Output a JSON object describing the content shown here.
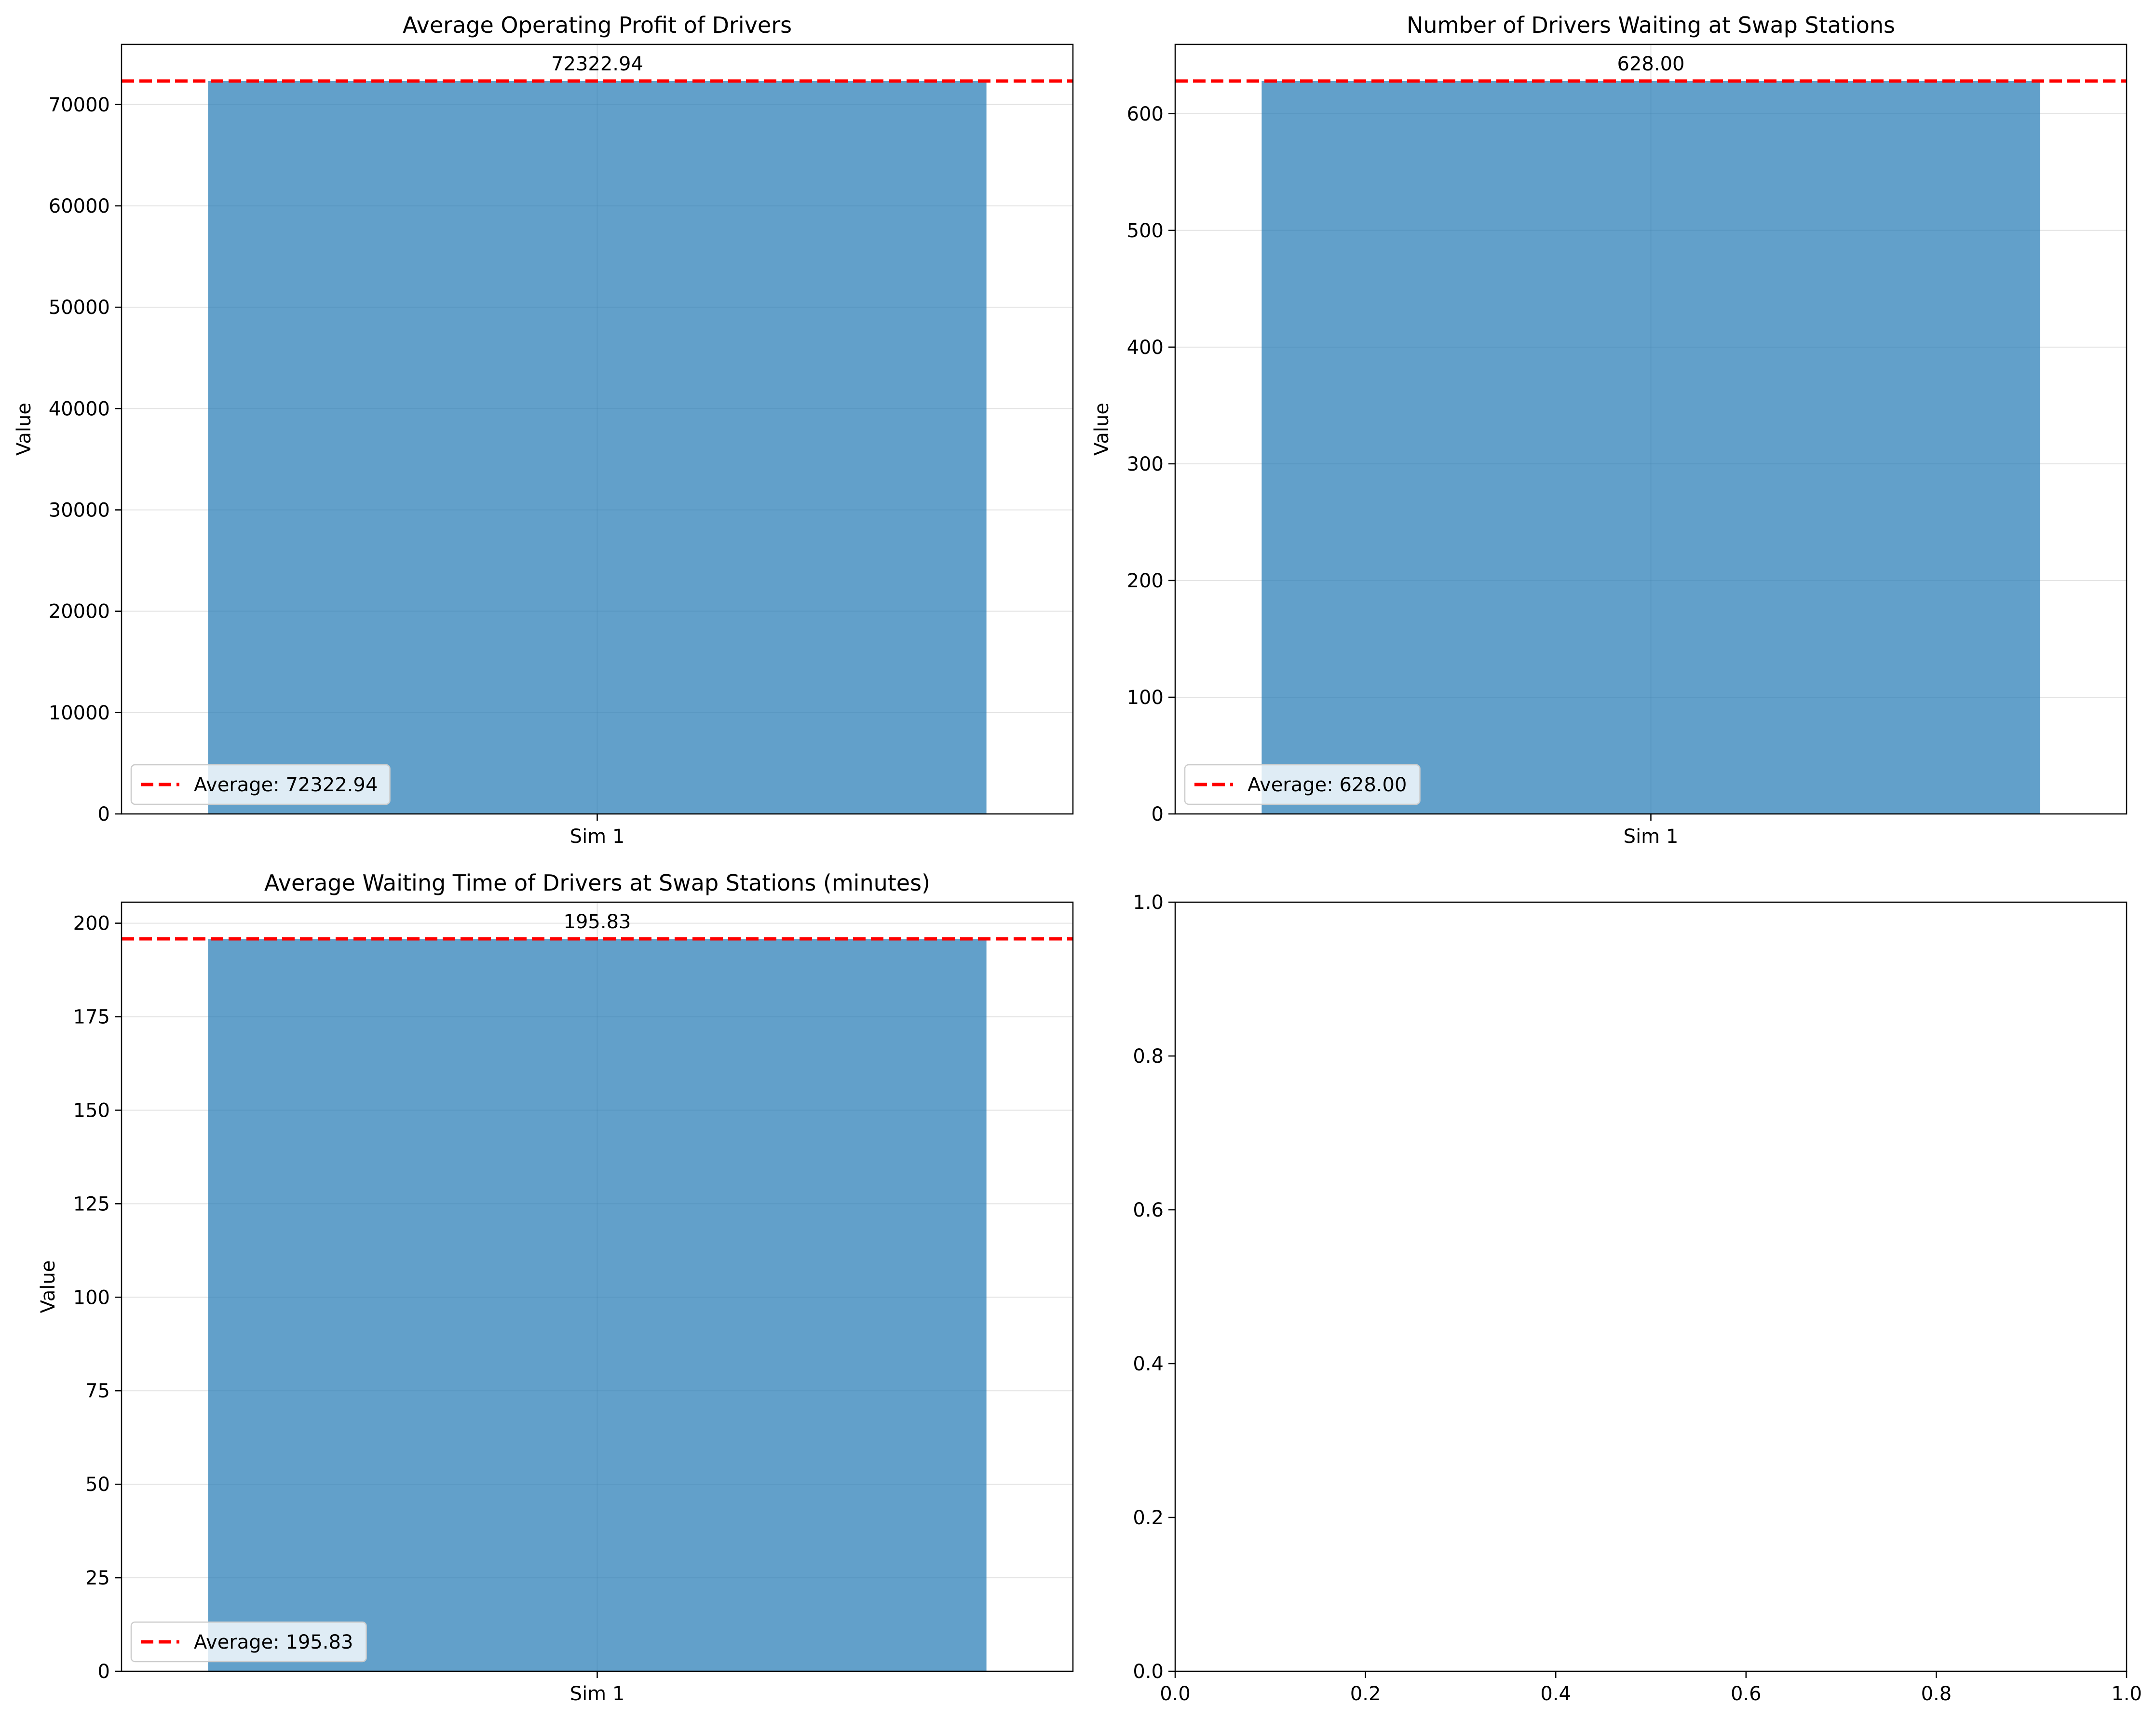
{
  "chart_data": [
    {
      "type": "bar",
      "title": "Average Operating Profit of Drivers",
      "xlabel": "",
      "ylabel": "Value",
      "categories": [
        "Sim 1"
      ],
      "values": [
        72322.94
      ],
      "value_labels": [
        "72322.94"
      ],
      "ylim": [
        0,
        75936.09
      ],
      "yticks": [
        0,
        10000,
        20000,
        30000,
        40000,
        50000,
        60000,
        70000
      ],
      "average": 72322.94,
      "legend": {
        "label": "Average: 72322.94",
        "position": "lower-left"
      },
      "grid": true
    },
    {
      "type": "bar",
      "title": "Number of Drivers Waiting at Swap Stations",
      "xlabel": "",
      "ylabel": "Value",
      "categories": [
        "Sim 1"
      ],
      "values": [
        628.0
      ],
      "value_labels": [
        "628.00"
      ],
      "ylim": [
        0,
        659.4
      ],
      "yticks": [
        0,
        100,
        200,
        300,
        400,
        500,
        600
      ],
      "average": 628.0,
      "legend": {
        "label": "Average: 628.00",
        "position": "lower-left"
      },
      "grid": true
    },
    {
      "type": "bar",
      "title": "Average Waiting Time of Drivers at Swap Stations (minutes)",
      "xlabel": "",
      "ylabel": "Value",
      "categories": [
        "Sim 1"
      ],
      "values": [
        195.83
      ],
      "value_labels": [
        "195.83"
      ],
      "ylim": [
        0,
        205.62
      ],
      "yticks": [
        0,
        25,
        50,
        75,
        100,
        125,
        150,
        175,
        200
      ],
      "average": 195.83,
      "legend": {
        "label": "Average: 195.83",
        "position": "lower-left"
      },
      "grid": true
    },
    {
      "type": "empty",
      "title": "",
      "xlim": [
        0,
        1
      ],
      "ylim": [
        0,
        1
      ],
      "xticks": [
        "0.0",
        "0.2",
        "0.4",
        "0.6",
        "0.8",
        "1.0"
      ],
      "yticks": [
        "0.0",
        "0.2",
        "0.4",
        "0.6",
        "0.8",
        "1.0"
      ]
    }
  ],
  "colors": {
    "bar": "#1f77b4",
    "average_line": "#ff0000",
    "grid": "#b0b0b0",
    "axis": "#000000"
  }
}
